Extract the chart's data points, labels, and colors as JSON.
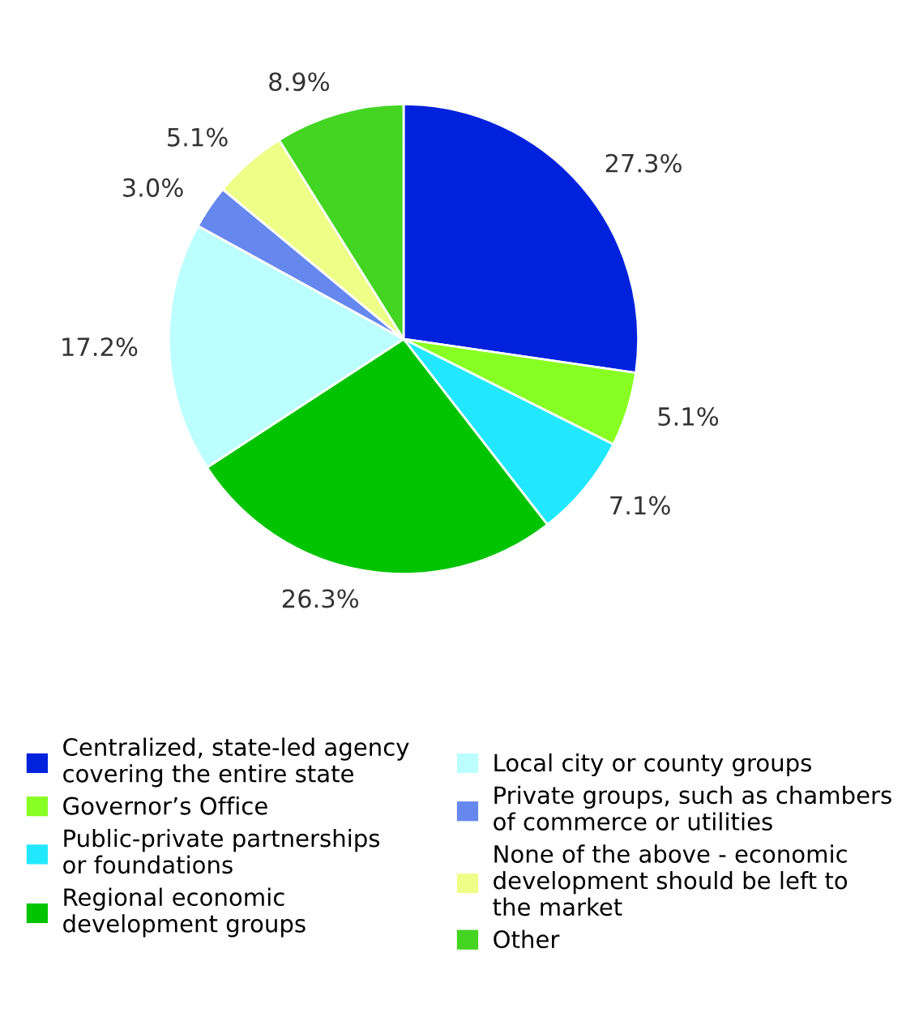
{
  "chart_data": {
    "type": "pie",
    "categories": [
      "Centralized, state-led agency\ncovering the entire state",
      "Governor’s Office",
      "Public-private partnerships\nor foundations",
      "Regional economic\ndevelopment groups",
      "Local city or county groups",
      "Private groups, such as chambers\nof commerce or utilities",
      "None of the above - economic\ndevelopment should be left to\nthe market",
      "Other"
    ],
    "values": [
      27.3,
      5.1,
      7.1,
      26.3,
      17.2,
      3.0,
      5.1,
      8.9
    ],
    "value_labels": [
      "27.3%",
      "5.1%",
      "7.1%",
      "26.3%",
      "17.2%",
      "3.0%",
      "5.1%",
      "8.9%"
    ],
    "colors": [
      "#0022dd",
      "#88ff22",
      "#22e8ff",
      "#00c400",
      "#bbffff",
      "#6688ee",
      "#eeff88",
      "#44d422"
    ],
    "legend": "bottom"
  }
}
